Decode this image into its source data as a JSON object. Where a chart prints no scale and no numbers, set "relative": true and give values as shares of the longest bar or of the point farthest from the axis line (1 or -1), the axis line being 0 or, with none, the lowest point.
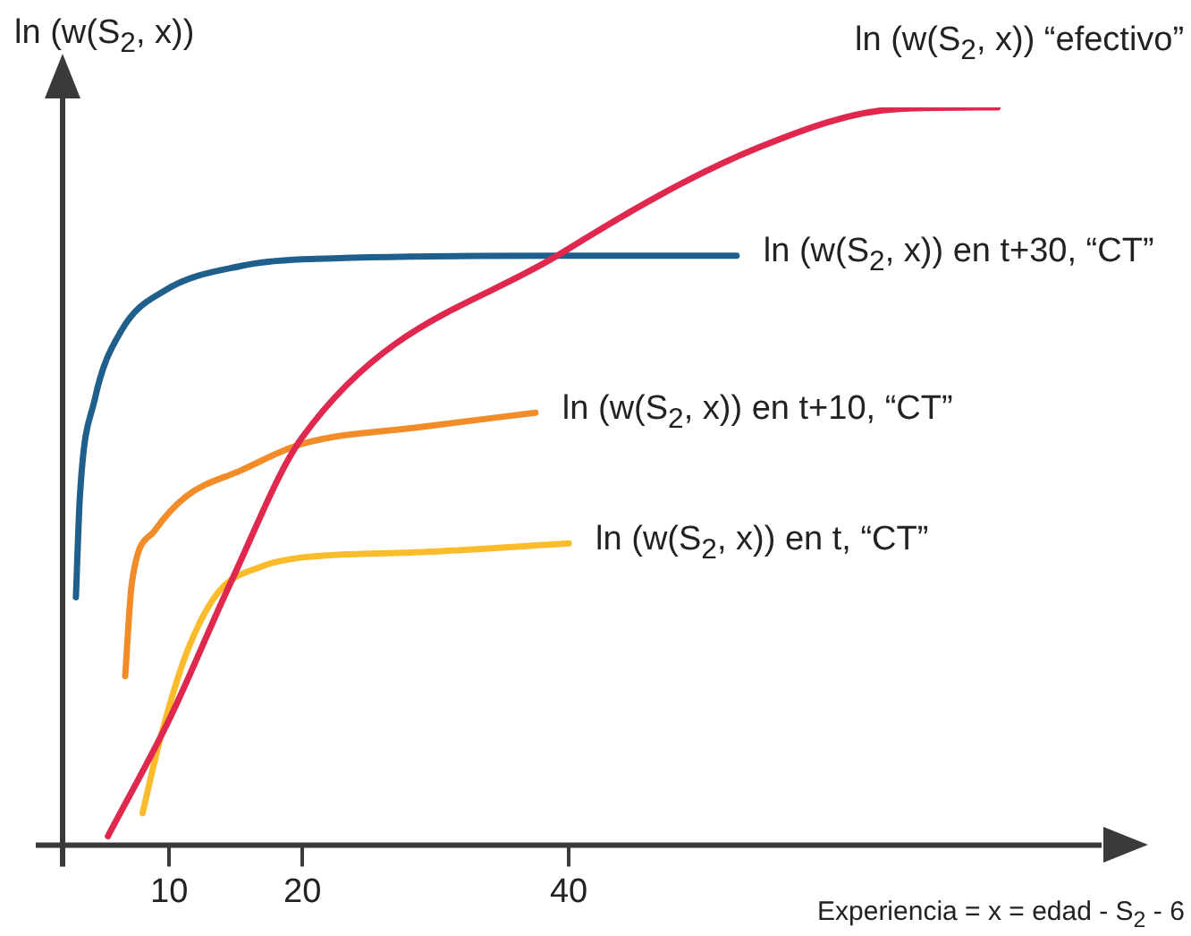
{
  "chart_data": {
    "type": "line",
    "relative": true,
    "xlabel": "Experiencia = x = edad - S$_{2}$ - 6",
    "ylabel": "ln (w(S$_{2}$, x))",
    "xlim": [
      2,
      80
    ],
    "xticks": [
      10,
      20,
      40
    ],
    "grid": false,
    "legend": false,
    "marker": "none",
    "line_style": "solid",
    "series": [
      {
        "name": "ln (w(S$_{2}$, x)) “efectivo”",
        "color": "#e0284f",
        "x": [
          5.4,
          10,
          14.6,
          20,
          39.6,
          54.3,
          64.8,
          72.2
        ],
        "values": [
          0.012,
          0.17,
          0.355,
          0.553,
          0.804,
          0.946,
          0.998,
          1.0
        ]
      },
      {
        "name": "ln (w(S$_{2}$, x)) en t+30, “CT”",
        "color": "#1f5f8b",
        "x": [
          3.0,
          3.3,
          4.4,
          6.4,
          9.7,
          15.4,
          20,
          39.6,
          52.6
        ],
        "values": [
          0.336,
          0.473,
          0.603,
          0.697,
          0.752,
          0.785,
          0.794,
          0.799,
          0.799
        ]
      },
      {
        "name": "ln (w(S$_{2}$, x)) en t+10, “CT”",
        "color": "#f28c28",
        "x": [
          6.7,
          7.2,
          8.9,
          11.3,
          15.4,
          20,
          29,
          37.5
        ],
        "values": [
          0.229,
          0.355,
          0.426,
          0.473,
          0.508,
          0.544,
          0.567,
          0.586
        ]
      },
      {
        "name": "ln (w(S$_{2}$, x)) en t, “CT”",
        "color": "#fbbc2c",
        "x": [
          8.0,
          9.3,
          11.3,
          13.7,
          17,
          20,
          29,
          40
        ],
        "values": [
          0.043,
          0.142,
          0.26,
          0.343,
          0.378,
          0.39,
          0.397,
          0.409
        ]
      }
    ]
  }
}
